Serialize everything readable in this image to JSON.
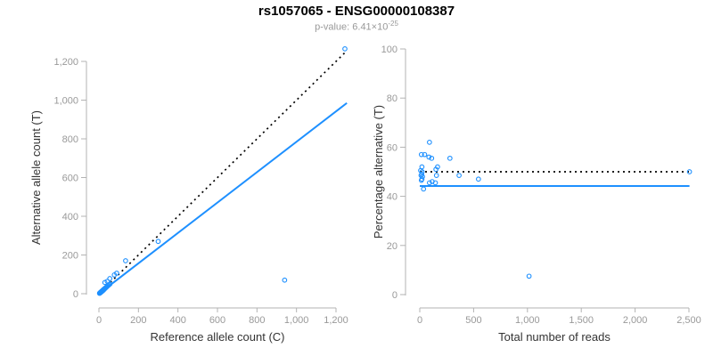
{
  "figure": {
    "title": "rs1057065 - ENSG00000108387",
    "subtitle_base": "p-value: 6.41×10",
    "subtitle_exponent": "-25"
  },
  "colors": {
    "accent_blue": "#1E90FF",
    "axis_line": "#B3B3B3",
    "tick_text": "#999999",
    "axis_title_text": "#333333",
    "dotted_line": "#000000"
  },
  "chart_data": [
    {
      "type": "scatter",
      "name": "allele-counts-panel",
      "title": "rs1057065 - ENSG00000108387",
      "xlabel": "Reference allele count (C)",
      "ylabel": "Alternative allele count (T)",
      "xlim": [
        0,
        1260
      ],
      "ylim": [
        0,
        1270
      ],
      "grid": false,
      "xticks": {
        "values": [
          0,
          200,
          400,
          600,
          800,
          1000,
          1200
        ],
        "labels": [
          "0",
          "200",
          "400",
          "600",
          "800",
          "1,000",
          "1,200"
        ]
      },
      "yticks": {
        "values": [
          0,
          200,
          400,
          600,
          800,
          1000,
          1200
        ],
        "labels": [
          "0",
          "200",
          "400",
          "600",
          "800",
          "1,000",
          "1,200"
        ]
      },
      "points": [
        [
          3,
          2
        ],
        [
          4,
          3
        ],
        [
          5,
          4
        ],
        [
          6,
          5
        ],
        [
          7,
          6
        ],
        [
          8,
          5
        ],
        [
          8,
          7
        ],
        [
          9,
          8
        ],
        [
          10,
          8
        ],
        [
          11,
          9
        ],
        [
          12,
          10
        ],
        [
          13,
          12
        ],
        [
          14,
          11
        ],
        [
          15,
          13
        ],
        [
          16,
          13
        ],
        [
          17,
          15
        ],
        [
          18,
          14
        ],
        [
          19,
          17
        ],
        [
          20,
          16
        ],
        [
          21,
          19
        ],
        [
          22,
          18
        ],
        [
          23,
          21
        ],
        [
          24,
          20
        ],
        [
          25,
          23
        ],
        [
          26,
          22
        ],
        [
          27,
          24
        ],
        [
          28,
          25
        ],
        [
          29,
          26
        ],
        [
          30,
          27
        ],
        [
          31,
          28
        ],
        [
          34,
          30
        ],
        [
          37,
          33
        ],
        [
          40,
          36
        ],
        [
          44,
          40
        ],
        [
          48,
          43
        ],
        [
          52,
          47
        ],
        [
          56,
          50
        ],
        [
          30,
          58
        ],
        [
          42,
          64
        ],
        [
          55,
          78
        ],
        [
          78,
          97
        ],
        [
          90,
          106
        ],
        [
          135,
          170
        ],
        [
          300,
          270
        ],
        [
          940,
          70
        ],
        [
          1245,
          1265
        ]
      ],
      "lines": [
        {
          "name": "identity-line",
          "style": "dotted",
          "color": "black",
          "x": [
            0,
            1250
          ],
          "y": [
            0,
            1250
          ]
        },
        {
          "name": "fit-line",
          "style": "solid",
          "color": "blue",
          "x": [
            0,
            1255
          ],
          "y": [
            0,
            985
          ]
        }
      ]
    },
    {
      "type": "scatter",
      "name": "percentage-panel",
      "xlabel": "Total number of reads",
      "ylabel": "Percentage alternative (T)",
      "xlim": [
        0,
        2560
      ],
      "ylim": [
        0,
        100
      ],
      "grid": false,
      "xticks": {
        "values": [
          0,
          500,
          1000,
          1500,
          2000,
          2500
        ],
        "labels": [
          "0",
          "500",
          "1,000",
          "1,500",
          "2,000",
          "2,500"
        ]
      },
      "yticks": {
        "values": [
          0,
          20,
          40,
          60,
          80,
          100
        ],
        "labels": [
          "0",
          "20",
          "40",
          "60",
          "80",
          "100"
        ]
      },
      "points": [
        [
          90,
          62
        ],
        [
          15,
          57
        ],
        [
          45,
          57
        ],
        [
          85,
          56
        ],
        [
          110,
          55.5
        ],
        [
          280,
          55.5
        ],
        [
          20,
          52
        ],
        [
          165,
          52
        ],
        [
          150,
          51
        ],
        [
          8,
          50.5
        ],
        [
          22,
          50
        ],
        [
          18,
          49
        ],
        [
          12,
          48.5
        ],
        [
          25,
          48
        ],
        [
          155,
          48.5
        ],
        [
          365,
          48.5
        ],
        [
          20,
          47
        ],
        [
          15,
          46.5
        ],
        [
          115,
          46
        ],
        [
          90,
          45.5
        ],
        [
          145,
          45.5
        ],
        [
          35,
          43
        ],
        [
          545,
          47
        ],
        [
          1015,
          7.5
        ],
        [
          2505,
          50
        ]
      ],
      "lines": [
        {
          "name": "expected-percentage-line",
          "style": "dotted",
          "color": "black",
          "x": [
            0,
            2505
          ],
          "y": [
            50,
            50
          ]
        },
        {
          "name": "observed-percentage-line",
          "style": "solid",
          "color": "blue",
          "x": [
            0,
            2505
          ],
          "y": [
            44.2,
            44.2
          ]
        }
      ]
    }
  ]
}
